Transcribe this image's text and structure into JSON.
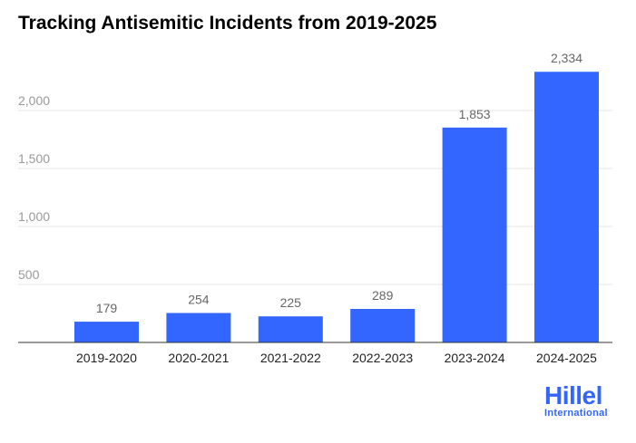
{
  "chart_data": {
    "type": "bar",
    "title": "Tracking Antisemitic Incidents from 2019-2025",
    "categories": [
      "2019-2020",
      "2020-2021",
      "2021-2022",
      "2022-2023",
      "2023-2024",
      "2024-2025"
    ],
    "values": [
      179,
      254,
      225,
      289,
      1853,
      2334
    ],
    "value_labels": [
      "179",
      "254",
      "225",
      "289",
      "1,853",
      "2,334"
    ],
    "xlabel": "",
    "ylabel": "",
    "ylim": [
      0,
      2400
    ],
    "yticks": [
      500,
      1000,
      1500,
      2000
    ],
    "ytick_labels": [
      "500",
      "1,000",
      "1,500",
      "2,000"
    ],
    "grid": true,
    "bar_color": "#3366ff"
  },
  "logo": {
    "name": "Hillel",
    "subtitle": "International"
  }
}
